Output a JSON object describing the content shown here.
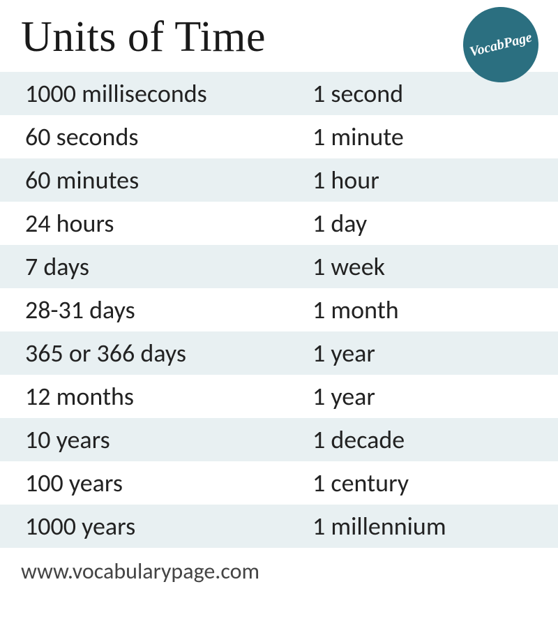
{
  "title": "Units of Time",
  "badge": {
    "text": "VocabPage",
    "bg_color": "#2b6f80",
    "text_color": "#ffffff"
  },
  "colors": {
    "row_alt_bg": "#e8f0f2",
    "row_bg": "#ffffff",
    "text": "#222222",
    "title": "#1a1a1a",
    "footer": "#444444"
  },
  "table": {
    "rows": [
      {
        "left": "1000 milliseconds",
        "right": "1 second"
      },
      {
        "left": "60 seconds",
        "right": "1 minute"
      },
      {
        "left": "60 minutes",
        "right": "1 hour"
      },
      {
        "left": "24 hours",
        "right": "1 day"
      },
      {
        "left": "7 days",
        "right": "1 week"
      },
      {
        "left": "28-31 days",
        "right": "1 month"
      },
      {
        "left": "365 or 366 days",
        "right": "1 year"
      },
      {
        "left": "12 months",
        "right": "1 year"
      },
      {
        "left": "10 years",
        "right": "1 decade"
      },
      {
        "left": "100 years",
        "right": "1 century"
      },
      {
        "left": "1000 years",
        "right": "1 millennium"
      }
    ]
  },
  "footer": "www.vocabularypage.com"
}
